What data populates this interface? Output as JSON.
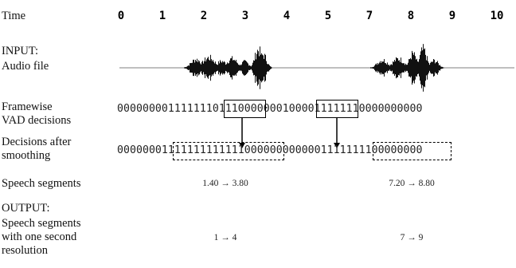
{
  "labels": {
    "time": "Time",
    "input_title": "INPUT:",
    "input_sub": "Audio file",
    "framewise_1": "Framewise",
    "framewise_2": "VAD decisions",
    "smoothing_1": "Decisions after",
    "smoothing_2": "smoothing",
    "segments": "Speech segments",
    "output_title": "OUTPUT:",
    "output_1": "Speech segments",
    "output_2": "with one second",
    "output_3": "resolution"
  },
  "time_ticks": [
    "0",
    "1",
    "2",
    "3",
    "4",
    "5",
    "7",
    "8",
    "9",
    "10"
  ],
  "framewise_bits": "000000001111111011100000001000011111110000000000",
  "smoothed_bits": "000000011111111111110000000000001111111100000000",
  "speech_segments": [
    "1.40 → 3.80",
    "7.20 → 8.80"
  ],
  "output_segments": [
    "1 → 4",
    "7 → 9"
  ]
}
